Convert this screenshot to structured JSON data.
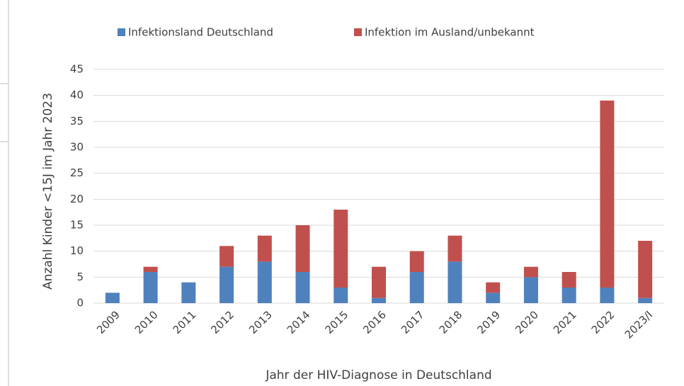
{
  "chart_data": {
    "type": "bar",
    "stacked": true,
    "x_label": "Jahr der HIV-Diagnose in Deutschland",
    "y_label": "Anzahl Kinder <15J im Jahr 2023",
    "categories": [
      "2009",
      "2010",
      "2011",
      "2012",
      "2013",
      "2014",
      "2015",
      "2016",
      "2017",
      "2018",
      "2019",
      "2020",
      "2021",
      "2022",
      "2023/I"
    ],
    "series": [
      {
        "name": "Infektionsland Deutschland",
        "color": "#4f81bd",
        "values": [
          2,
          6,
          4,
          7,
          8,
          6,
          3,
          1,
          6,
          8,
          2,
          5,
          3,
          3,
          1
        ]
      },
      {
        "name": "Infektion im Ausland/unbekannt",
        "color": "#c0504d",
        "values": [
          0,
          1,
          0,
          4,
          5,
          9,
          15,
          6,
          4,
          5,
          2,
          2,
          3,
          36,
          11
        ]
      }
    ],
    "ylim": [
      0,
      45
    ],
    "yticks": [
      0,
      5,
      10,
      15,
      20,
      25,
      30,
      35,
      40,
      45
    ],
    "grid": true,
    "legend": "top"
  }
}
